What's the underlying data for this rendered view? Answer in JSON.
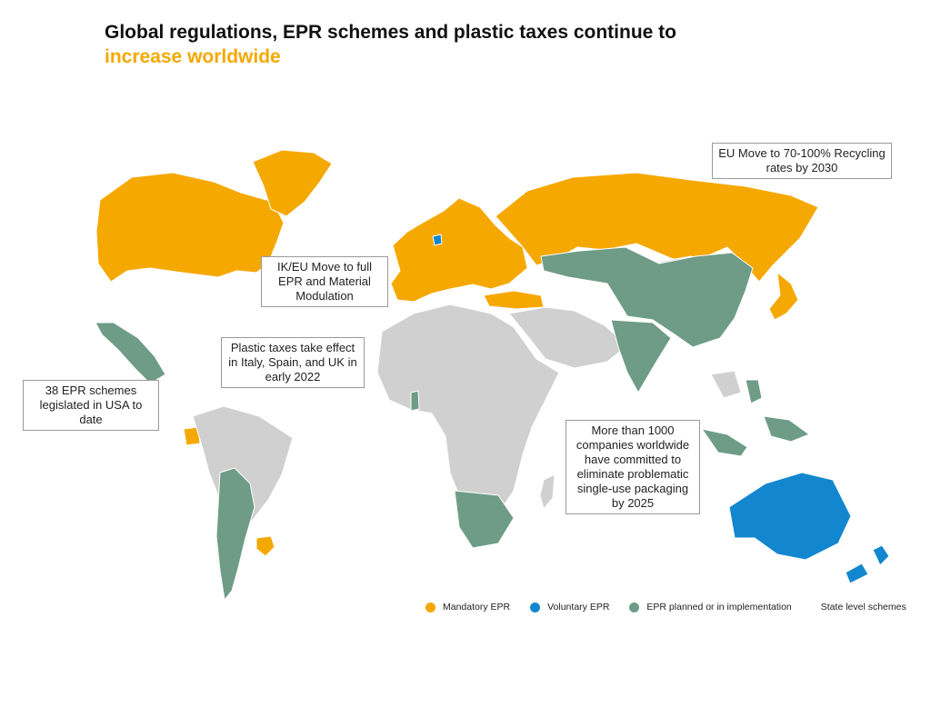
{
  "title": {
    "line1": "Global regulations, EPR schemes and plastic taxes continue to",
    "line2": "increase worldwide"
  },
  "colors": {
    "mandatory": "#f5a800",
    "voluntary": "#1287cf",
    "planned": "#6e9c87",
    "other": "#cfd0cf",
    "border": "#ffffff",
    "highlight": "#f5a800"
  },
  "callouts": {
    "eu_recycling": "EU Move to 70-100% Recycling rates by 2030",
    "uk_eu_epr": "IK/EU Move to full EPR and Material Modulation",
    "plastic_taxes": "Plastic taxes take effect in Italy, Spain, and UK in early 2022",
    "usa_epr": "38 EPR schemes legislated in USA to date",
    "companies": "More than 1000 companies worldwide have committed to eliminate problematic single-use packaging by 2025"
  },
  "legend": {
    "mandatory": "Mandatory EPR",
    "voluntary": "Voluntary EPR",
    "planned": "EPR planned or in implementation",
    "state": "State level schemes"
  },
  "regions": [
    {
      "name": "North America",
      "status": "mandatory"
    },
    {
      "name": "Greenland",
      "status": "mandatory"
    },
    {
      "name": "Europe",
      "status": "mandatory"
    },
    {
      "name": "Russia",
      "status": "mandatory"
    },
    {
      "name": "Japan",
      "status": "mandatory"
    },
    {
      "name": "Turkey",
      "status": "mandatory"
    },
    {
      "name": "Mexico and Central America",
      "status": "planned"
    },
    {
      "name": "Chile and Argentina",
      "status": "planned"
    },
    {
      "name": "Kazakhstan and China",
      "status": "planned"
    },
    {
      "name": "India",
      "status": "planned"
    },
    {
      "name": "Southern Africa",
      "status": "planned"
    },
    {
      "name": "Australia",
      "status": "voluntary"
    },
    {
      "name": "New Zealand",
      "status": "voluntary"
    },
    {
      "name": "Denmark",
      "status": "voluntary"
    }
  ]
}
